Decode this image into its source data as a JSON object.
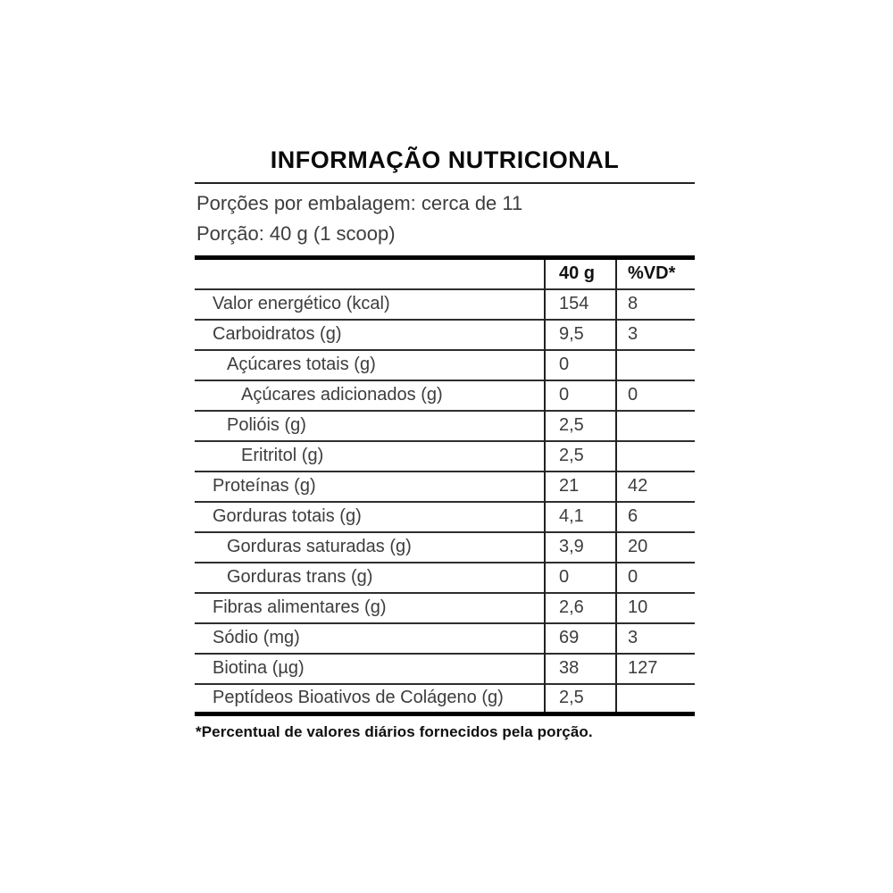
{
  "label": {
    "title": "INFORMAÇÃO NUTRICIONAL",
    "servings_line": "Porções por embalagem: cerca de 11",
    "serving_line": "Porção: 40 g (1 scoop)",
    "columns": {
      "nutrient": "",
      "amount": "40 g",
      "dv": "%VD*"
    },
    "rows": [
      {
        "name": "Valor energético (kcal)",
        "indent": 0,
        "amount": "154",
        "dv": "8"
      },
      {
        "name": "Carboidratos (g)",
        "indent": 0,
        "amount": "9,5",
        "dv": "3"
      },
      {
        "name": "Açúcares totais (g)",
        "indent": 1,
        "amount": "0",
        "dv": ""
      },
      {
        "name": "Açúcares adicionados (g)",
        "indent": 2,
        "amount": "0",
        "dv": "0"
      },
      {
        "name": "Polióis (g)",
        "indent": 1,
        "amount": "2,5",
        "dv": ""
      },
      {
        "name": "Eritritol (g)",
        "indent": 2,
        "amount": "2,5",
        "dv": ""
      },
      {
        "name": "Proteínas (g)",
        "indent": 0,
        "amount": "21",
        "dv": "42"
      },
      {
        "name": "Gorduras totais (g)",
        "indent": 0,
        "amount": "4,1",
        "dv": "6"
      },
      {
        "name": "Gorduras saturadas (g)",
        "indent": 1,
        "amount": "3,9",
        "dv": "20"
      },
      {
        "name": "Gorduras trans (g)",
        "indent": 1,
        "amount": "0",
        "dv": "0"
      },
      {
        "name": "Fibras alimentares (g)",
        "indent": 0,
        "amount": "2,6",
        "dv": "10"
      },
      {
        "name": "Sódio (mg)",
        "indent": 0,
        "amount": "69",
        "dv": "3"
      },
      {
        "name": "Biotina (µg)",
        "indent": 0,
        "amount": "38",
        "dv": "127"
      },
      {
        "name": "Peptídeos Bioativos de Colágeno (g)",
        "indent": 0,
        "amount": "2,5",
        "dv": ""
      }
    ],
    "footnote": "*Percentual de valores diários fornecidos pela porção.",
    "colors": {
      "background": "#ffffff",
      "text": "#3d3d3d",
      "strong_text": "#0a0a0a",
      "thin_rule": "#2e2e2e",
      "thick_rule": "#000000"
    }
  }
}
